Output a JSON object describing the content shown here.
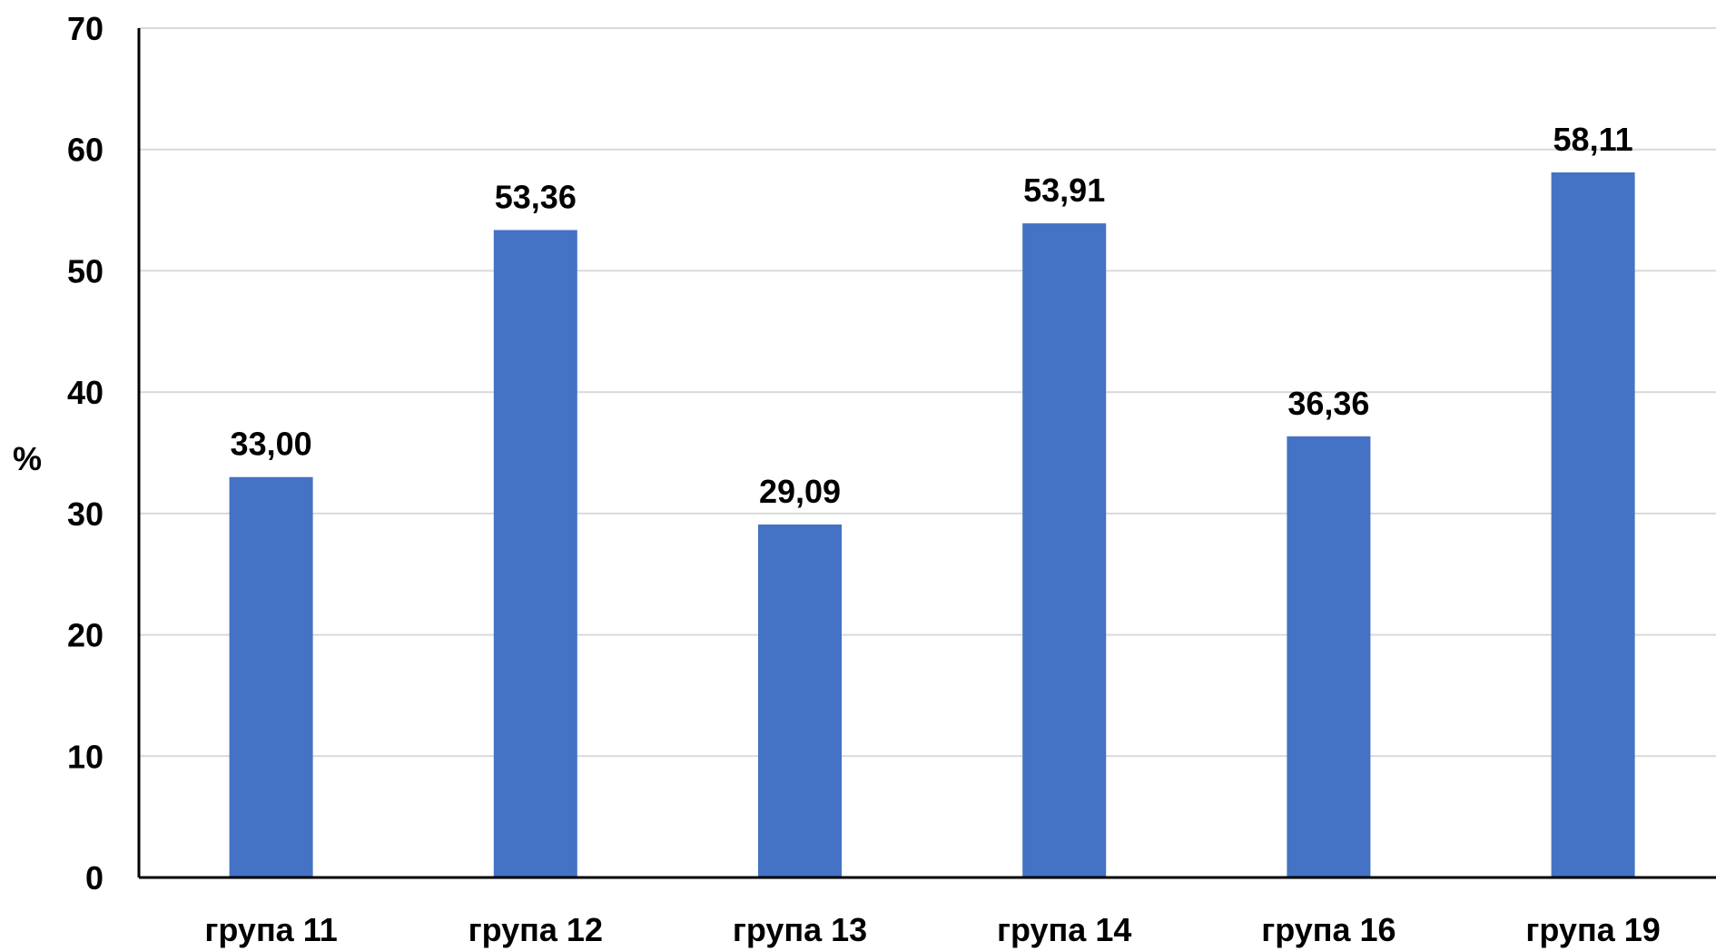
{
  "chart_data": {
    "type": "bar",
    "title": "",
    "xlabel": "",
    "ylabel": "%",
    "categories": [
      "група 11",
      "група 12",
      "група 13",
      "група 14",
      "група 16",
      "група 19"
    ],
    "values": [
      33.0,
      53.36,
      29.09,
      53.91,
      36.36,
      58.11
    ],
    "value_labels": [
      "33,00",
      "53,36",
      "29,09",
      "53,91",
      "36,36",
      "58,11"
    ],
    "ylim": [
      0,
      70
    ],
    "yticks": [
      0,
      10,
      20,
      30,
      40,
      50,
      60,
      70
    ],
    "grid": true,
    "legend": "none",
    "bar_color": "#4472C4"
  }
}
